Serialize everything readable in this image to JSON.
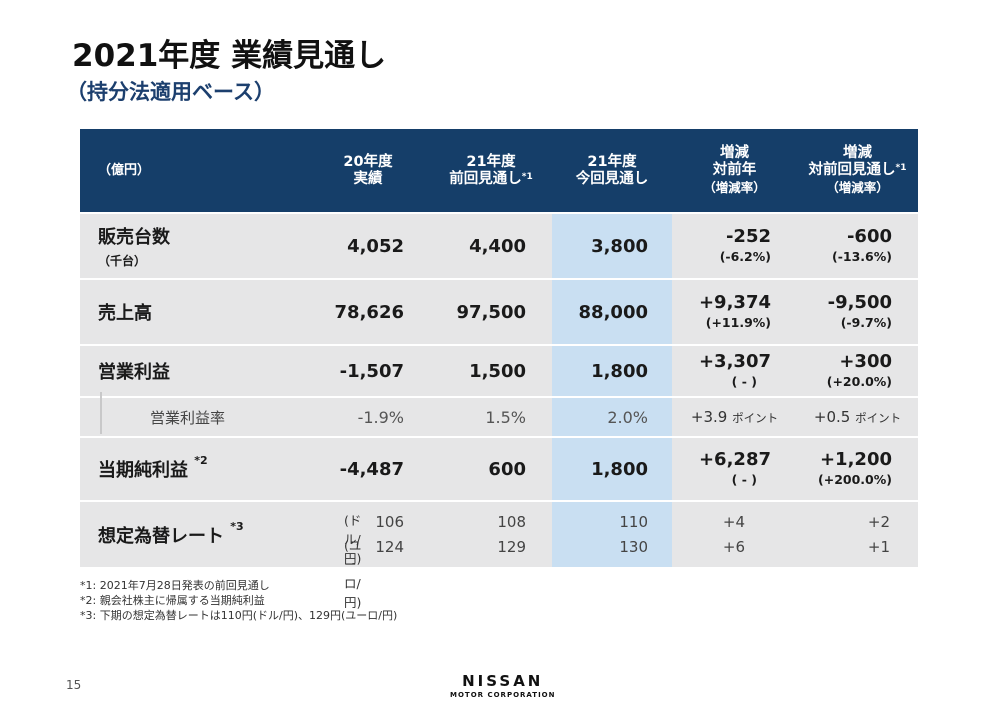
{
  "title": "2021年度 業績見通し",
  "subtitle": "（持分法適用ベース）",
  "table": {
    "unit_label": "（億円）",
    "headers": {
      "fy20": [
        "20年度",
        "実績"
      ],
      "fy21_prev": [
        "21年度",
        "前回見通し"
      ],
      "fy21_prev_note": "*1",
      "fy21_curr": [
        "21年度",
        "今回見通し"
      ],
      "vs_prev_year": [
        "増減",
        "対前年",
        "（増減率）"
      ],
      "vs_prev_forecast": [
        "増減",
        "対前回見通し",
        "（増減率）"
      ],
      "vs_prev_forecast_note": "*1"
    },
    "rows": {
      "units": {
        "label": "販売台数",
        "sub": "（千台）",
        "fy20": "4,052",
        "fy21_prev": "4,400",
        "fy21_curr": "3,800",
        "vs_year": "-252",
        "vs_year_pct": "(-6.2%)",
        "vs_prev": "-600",
        "vs_prev_pct": "(-13.6%)"
      },
      "revenue": {
        "label": "売上高",
        "fy20": "78,626",
        "fy21_prev": "97,500",
        "fy21_curr": "88,000",
        "vs_year": "+9,374",
        "vs_year_pct": "(+11.9%)",
        "vs_prev": "-9,500",
        "vs_prev_pct": "(-9.7%)"
      },
      "op_profit": {
        "label": "営業利益",
        "fy20": "-1,507",
        "fy21_prev": "1,500",
        "fy21_curr": "1,800",
        "vs_year": "+3,307",
        "vs_year_pct": "( - )",
        "vs_prev": "+300",
        "vs_prev_pct": "(+20.0%)"
      },
      "op_margin": {
        "label": "営業利益率",
        "fy20": "-1.9%",
        "fy21_prev": "1.5%",
        "fy21_curr": "2.0%",
        "vs_year": "+3.9",
        "vs_prev": "+0.5",
        "point_unit": "ポイント"
      },
      "net_income": {
        "label": "当期純利益",
        "note": "*2",
        "fy20": "-4,487",
        "fy21_prev": "600",
        "fy21_curr": "1,800",
        "vs_year": "+6,287",
        "vs_year_pct": "( - )",
        "vs_prev": "+1,200",
        "vs_prev_pct": "(+200.0%)"
      },
      "fx": {
        "label": "想定為替レート",
        "note": "*3",
        "usd_unit": "(ドル/円)",
        "eur_unit": "(ユーロ/円)",
        "fy20_usd": "106",
        "fy20_eur": "124",
        "fy21_prev_usd": "108",
        "fy21_prev_eur": "129",
        "fy21_curr_usd": "110",
        "fy21_curr_eur": "130",
        "vs_year_usd": "+4",
        "vs_year_eur": "+6",
        "vs_prev_usd": "+2",
        "vs_prev_eur": "+1"
      }
    }
  },
  "footnotes": [
    "*1: 2021年7月28日発表の前回見通し",
    "*2: 親会社株主に帰属する当期純利益",
    "*3: 下期の想定為替レートは110円(ドル/円)、129円(ユーロ/円)"
  ],
  "page_number": "15",
  "logo": {
    "brand": "NISSAN",
    "corp": "MOTOR CORPORATION"
  },
  "colors": {
    "header_bg": "#153e69",
    "row_bg": "#e6e6e7",
    "highlight_col": "#c9dff2",
    "subtitle": "#1c3f6e"
  }
}
